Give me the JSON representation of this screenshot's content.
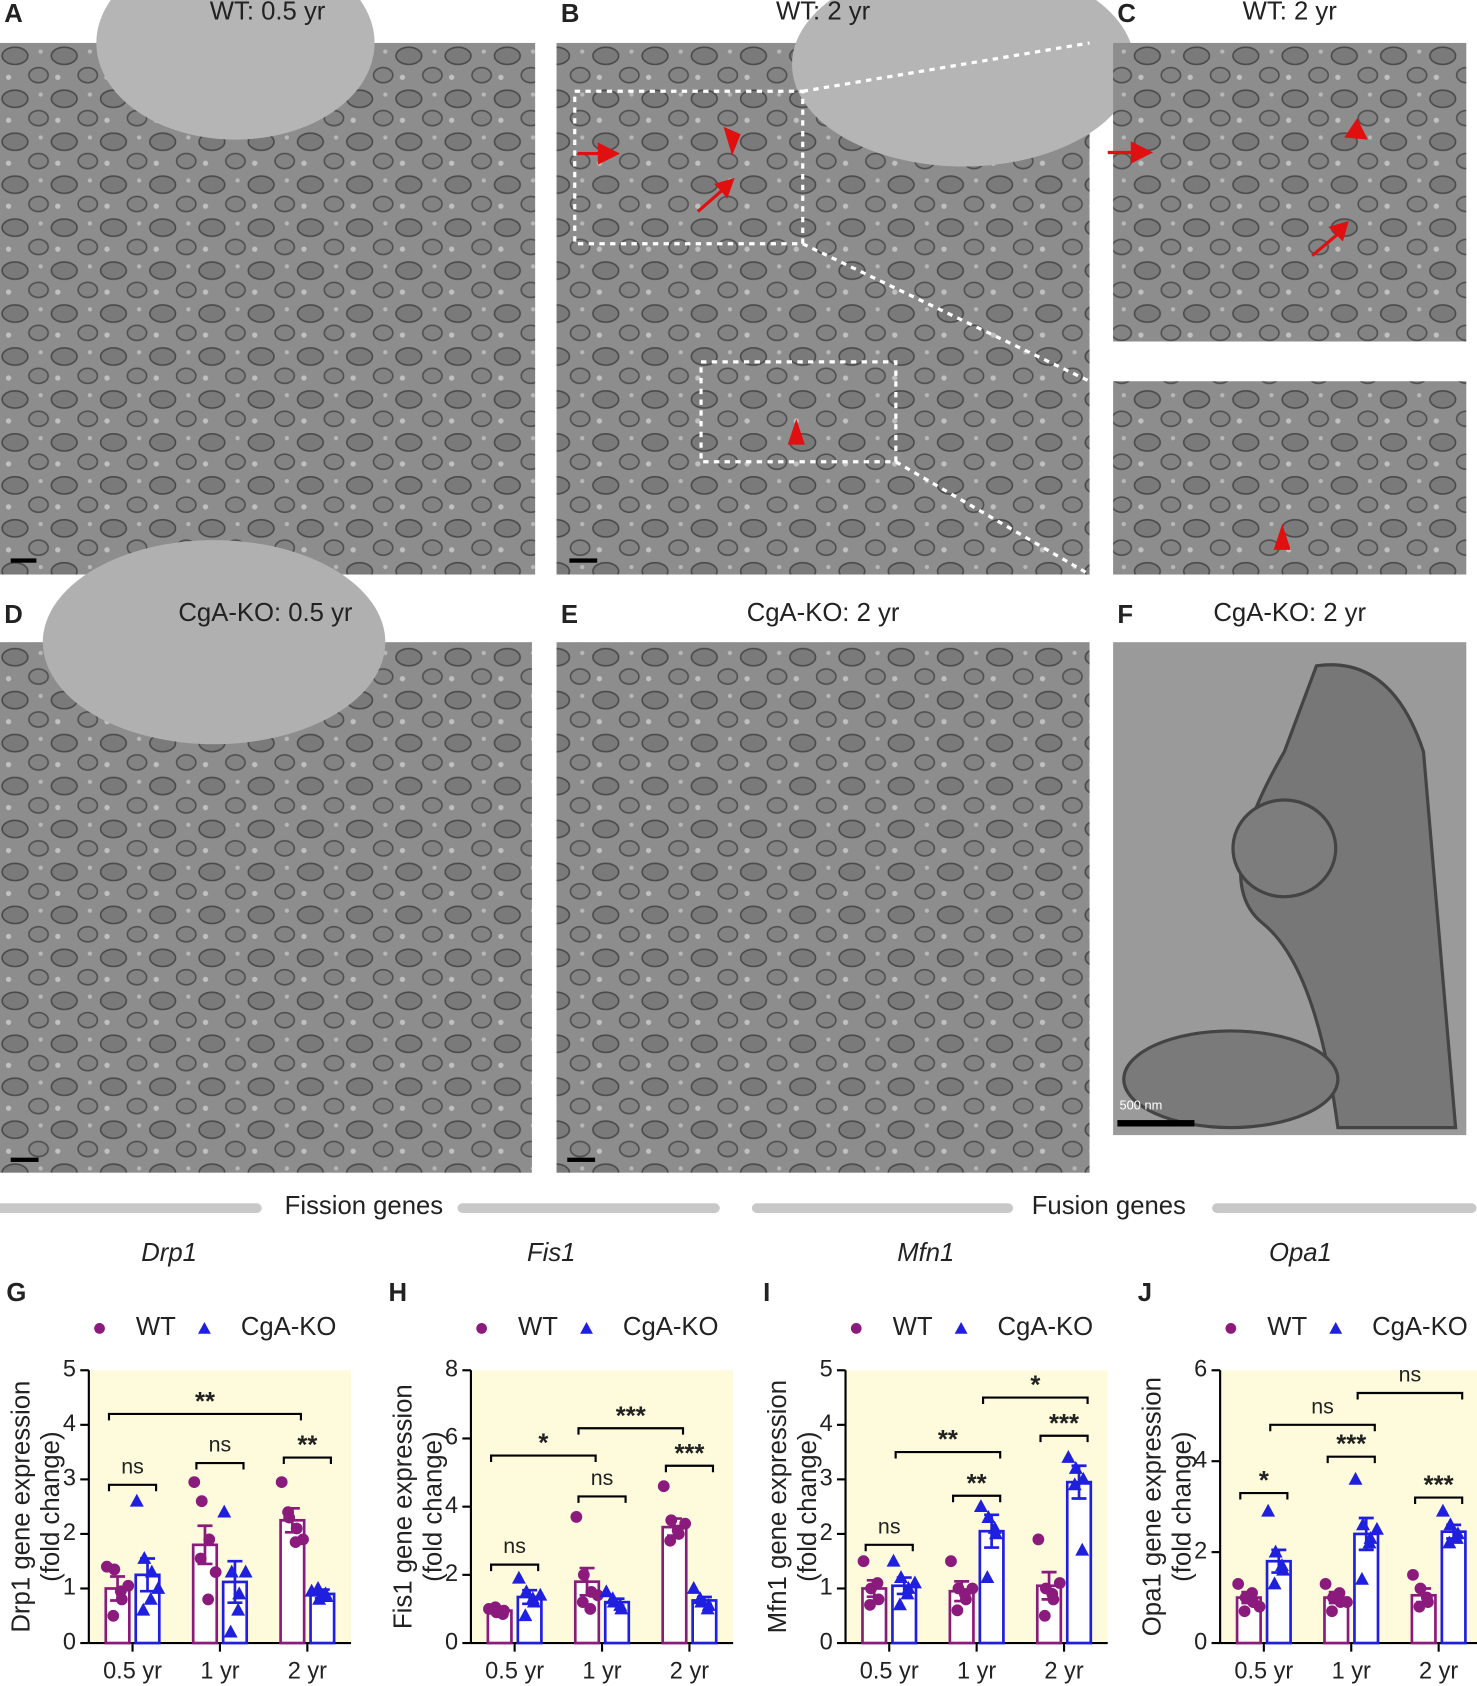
{
  "micrographs": {
    "panels": [
      {
        "letter": "A",
        "title": "WT: 0.5 yr"
      },
      {
        "letter": "B",
        "title": "WT: 2 yr"
      },
      {
        "letter": "C",
        "title": "WT: 2 yr"
      },
      {
        "letter": "D",
        "title": "CgA-KO: 0.5 yr"
      },
      {
        "letter": "E",
        "title": "CgA-KO: 2 yr"
      },
      {
        "letter": "F",
        "title": "CgA-KO: 2 yr"
      }
    ],
    "scale_label": "500 nm"
  },
  "sections": [
    "Fission genes",
    "Fusion genes"
  ],
  "chart_data": [
    {
      "type": "bar",
      "letter": "G",
      "title": "Drp1",
      "ylabel": [
        "Drp1 gene expression",
        "(fold change)"
      ],
      "categories": [
        "0.5 yr",
        "1 yr",
        "2 yr"
      ],
      "ylim": [
        0,
        5
      ],
      "yticks": [
        0,
        1,
        2,
        3,
        4,
        5
      ],
      "background": "#fdfbdc",
      "series": [
        {
          "name": "WT",
          "color": "#8b1a7d",
          "marker": "circle",
          "values": [
            1.0,
            1.8,
            2.25
          ],
          "errors": [
            0.22,
            0.35,
            0.22
          ],
          "points": [
            [
              1.4,
              1.35,
              0.8,
              0.5,
              0.95,
              1.05
            ],
            [
              2.95,
              2.6,
              1.9,
              1.55,
              0.8,
              1.3
            ],
            [
              2.95,
              2.3,
              2.1,
              2.4,
              1.85,
              1.9
            ]
          ]
        },
        {
          "name": "CgA-KO",
          "color": "#1f1fe0",
          "marker": "triangle",
          "values": [
            1.25,
            1.12,
            0.9
          ],
          "errors": [
            0.3,
            0.38,
            0.08
          ],
          "points": [
            [
              2.6,
              1.55,
              1.3,
              0.6,
              0.8,
              1.0
            ],
            [
              2.4,
              1.3,
              0.9,
              0.2,
              0.6,
              1.3
            ],
            [
              0.95,
              0.8,
              0.85,
              1.0,
              0.9
            ]
          ]
        }
      ],
      "brackets": [
        {
          "label": "**",
          "y": 4.2,
          "groups": [
            [
              0,
              0
            ],
            [
              0,
              2
            ]
          ]
        },
        {
          "label": "ns",
          "y": 2.9,
          "groups": [
            [
              0,
              0
            ],
            [
              1,
              0
            ]
          ]
        },
        {
          "label": "ns",
          "y": 3.3,
          "groups": [
            [
              0,
              1
            ],
            [
              1,
              1
            ]
          ]
        },
        {
          "label": "**",
          "y": 3.4,
          "groups": [
            [
              0,
              2
            ],
            [
              1,
              2
            ]
          ]
        }
      ]
    },
    {
      "type": "bar",
      "letter": "H",
      "title": "Fis1",
      "ylabel": [
        "Fis1 gene expression",
        "(fold change)"
      ],
      "categories": [
        "0.5 yr",
        "1 yr",
        "2 yr"
      ],
      "ylim": [
        0,
        8
      ],
      "yticks": [
        0,
        2,
        4,
        6,
        8
      ],
      "background": "#fdfbdc",
      "series": [
        {
          "name": "WT",
          "color": "#8b1a7d",
          "marker": "circle",
          "values": [
            0.95,
            1.8,
            3.4
          ],
          "errors": [
            0.06,
            0.4,
            0.25
          ],
          "points": [
            [
              1.0,
              0.9,
              0.95,
              1.05,
              0.85
            ],
            [
              3.7,
              2.0,
              1.5,
              1.2,
              1.0,
              1.4
            ],
            [
              4.6,
              3.6,
              3.2,
              3.0,
              3.3,
              3.5
            ]
          ]
        },
        {
          "name": "CgA-KO",
          "color": "#1f1fe0",
          "marker": "triangle",
          "values": [
            1.35,
            1.2,
            1.25
          ],
          "errors": [
            0.2,
            0.1,
            0.1
          ],
          "points": [
            [
              1.9,
              1.5,
              1.2,
              0.8,
              1.3,
              1.4
            ],
            [
              1.5,
              1.2,
              1.0,
              1.3,
              1.1
            ],
            [
              1.6,
              1.2,
              1.1,
              1.3,
              1.0
            ]
          ]
        }
      ],
      "brackets": [
        {
          "label": "ns",
          "y": 2.3,
          "groups": [
            [
              0,
              0
            ],
            [
              1,
              0
            ]
          ]
        },
        {
          "label": "*",
          "y": 5.5,
          "groups": [
            [
              0,
              0
            ],
            [
              0,
              1
            ]
          ]
        },
        {
          "label": "***",
          "y": 6.3,
          "groups": [
            [
              0,
              1
            ],
            [
              0,
              2
            ]
          ]
        },
        {
          "label": "ns",
          "y": 4.3,
          "groups": [
            [
              0,
              1
            ],
            [
              1,
              1
            ]
          ]
        },
        {
          "label": "***",
          "y": 5.2,
          "groups": [
            [
              0,
              2
            ],
            [
              1,
              2
            ]
          ]
        }
      ]
    },
    {
      "type": "bar",
      "letter": "I",
      "title": "Mfn1",
      "ylabel": [
        "Mfn1 gene expression",
        "(fold change)"
      ],
      "categories": [
        "0.5 yr",
        "1 yr",
        "2 yr"
      ],
      "ylim": [
        0,
        5
      ],
      "yticks": [
        0,
        1,
        2,
        3,
        4,
        5
      ],
      "background": "#fdfbdc",
      "series": [
        {
          "name": "WT",
          "color": "#8b1a7d",
          "marker": "circle",
          "values": [
            1.0,
            0.95,
            1.05
          ],
          "errors": [
            0.15,
            0.18,
            0.25
          ],
          "points": [
            [
              1.5,
              1.0,
              0.8,
              0.7,
              1.1
            ],
            [
              1.5,
              1.0,
              0.8,
              0.6,
              0.9,
              1.0
            ],
            [
              1.9,
              1.0,
              0.8,
              0.5,
              0.9,
              1.1
            ]
          ]
        },
        {
          "name": "CgA-KO",
          "color": "#1f1fe0",
          "marker": "triangle",
          "values": [
            1.05,
            2.05,
            2.95
          ],
          "errors": [
            0.15,
            0.3,
            0.3
          ],
          "points": [
            [
              1.5,
              1.2,
              1.0,
              0.7,
              0.9,
              1.1
            ],
            [
              2.5,
              2.3,
              2.0,
              1.2,
              2.1
            ],
            [
              3.4,
              3.2,
              3.0,
              2.9,
              1.7
            ]
          ]
        }
      ],
      "brackets": [
        {
          "label": "ns",
          "y": 1.8,
          "groups": [
            [
              0,
              0
            ],
            [
              1,
              0
            ]
          ]
        },
        {
          "label": "**",
          "y": 3.5,
          "groups": [
            [
              1,
              0
            ],
            [
              1,
              1
            ]
          ]
        },
        {
          "label": "**",
          "y": 2.7,
          "groups": [
            [
              0,
              1
            ],
            [
              1,
              1
            ]
          ]
        },
        {
          "label": "*",
          "y": 4.5,
          "groups": [
            [
              1,
              1
            ],
            [
              1,
              2
            ]
          ]
        },
        {
          "label": "***",
          "y": 3.8,
          "groups": [
            [
              0,
              2
            ],
            [
              1,
              2
            ]
          ]
        }
      ]
    },
    {
      "type": "bar",
      "letter": "J",
      "title": "Opa1",
      "ylabel": [
        "Opa1 gene expression",
        "(fold change)"
      ],
      "categories": [
        "0.5 yr",
        "1 yr",
        "2 yr"
      ],
      "ylim": [
        0,
        6
      ],
      "yticks": [
        0,
        2,
        4,
        6
      ],
      "background": "#fdfbdc",
      "series": [
        {
          "name": "WT",
          "color": "#8b1a7d",
          "marker": "circle",
          "values": [
            1.0,
            1.0,
            1.05
          ],
          "errors": [
            0.12,
            0.12,
            0.15
          ],
          "points": [
            [
              1.3,
              1.0,
              0.9,
              0.7,
              1.1,
              0.8
            ],
            [
              1.3,
              1.0,
              0.9,
              0.7,
              1.1,
              0.9
            ],
            [
              1.5,
              1.2,
              0.9,
              0.8,
              1.0
            ]
          ]
        },
        {
          "name": "CgA-KO",
          "color": "#1f1fe0",
          "marker": "triangle",
          "values": [
            1.8,
            2.4,
            2.45
          ],
          "errors": [
            0.25,
            0.35,
            0.15
          ],
          "points": [
            [
              2.9,
              2.0,
              1.6,
              1.3,
              1.7
            ],
            [
              3.6,
              2.6,
              2.3,
              1.4,
              2.2,
              2.5
            ],
            [
              2.9,
              2.6,
              2.4,
              2.2,
              2.3
            ]
          ]
        }
      ],
      "brackets": [
        {
          "label": "*",
          "y": 3.3,
          "groups": [
            [
              0,
              0
            ],
            [
              1,
              0
            ]
          ]
        },
        {
          "label": "ns",
          "y": 4.8,
          "groups": [
            [
              1,
              0
            ],
            [
              1,
              1
            ]
          ]
        },
        {
          "label": "***",
          "y": 4.1,
          "groups": [
            [
              0,
              1
            ],
            [
              1,
              1
            ]
          ]
        },
        {
          "label": "ns",
          "y": 5.5,
          "groups": [
            [
              1,
              1
            ],
            [
              1,
              2
            ]
          ]
        },
        {
          "label": "***",
          "y": 3.2,
          "groups": [
            [
              0,
              2
            ],
            [
              1,
              2
            ]
          ]
        }
      ]
    }
  ]
}
